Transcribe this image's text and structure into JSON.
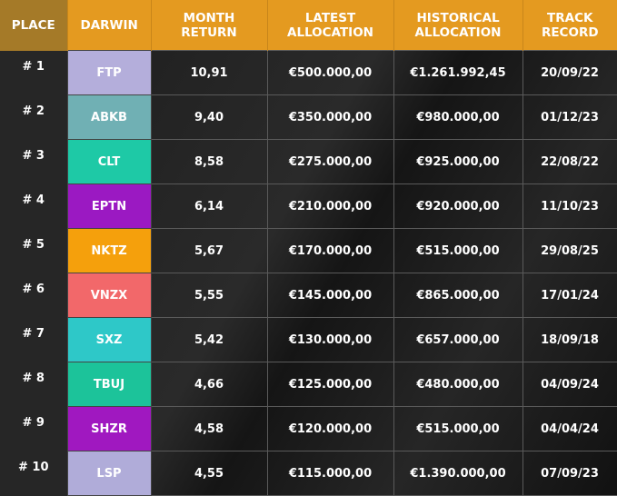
{
  "header": [
    "PLACE",
    "DARWIN",
    "MONTH RETURN",
    "LATEST ALLOCATION",
    "HISTORICAL ALLOCATION",
    "TRACK RECORD"
  ],
  "rows": [
    {
      "place": "# 1",
      "darwin": "FTP",
      "color": "#b4aedb",
      "month_return": "10,91",
      "latest_allocation": "€500.000,00",
      "historical_allocation": "€1.261.992,45",
      "track_record": "20/09/22"
    },
    {
      "place": "# 2",
      "darwin": "ABKB",
      "color": "#70b0b4",
      "month_return": "9,40",
      "latest_allocation": "€350.000,00",
      "historical_allocation": "€980.000,00",
      "track_record": "01/12/23"
    },
    {
      "place": "# 3",
      "darwin": "CLT",
      "color": "#1ec9a6",
      "month_return": "8,58",
      "latest_allocation": "€275.000,00",
      "historical_allocation": "€925.000,00",
      "track_record": "22/08/22"
    },
    {
      "place": "# 4",
      "darwin": "EPTN",
      "color": "#9b19c2",
      "month_return": "6,14",
      "latest_allocation": "€210.000,00",
      "historical_allocation": "€920.000,00",
      "track_record": "11/10/23"
    },
    {
      "place": "# 5",
      "darwin": "NKTZ",
      "color": "#f5a00c",
      "month_return": "5,67",
      "latest_allocation": "€170.000,00",
      "historical_allocation": "€515.000,00",
      "track_record": "29/08/25"
    },
    {
      "place": "# 6",
      "darwin": "VNZX",
      "color": "#f2686a",
      "month_return": "5,55",
      "latest_allocation": "€145.000,00",
      "historical_allocation": "€865.000,00",
      "track_record": "17/01/24"
    },
    {
      "place": "# 7",
      "darwin": "SXZ",
      "color": "#2ec8c8",
      "month_return": "5,42",
      "latest_allocation": "€130.000,00",
      "historical_allocation": "€657.000,00",
      "track_record": "18/09/18"
    },
    {
      "place": "# 8",
      "darwin": "TBUJ",
      "color": "#1cc39a",
      "month_return": "4,66",
      "latest_allocation": "€125.000,00",
      "historical_allocation": "€480.000,00",
      "track_record": "04/09/24"
    },
    {
      "place": "# 9",
      "darwin": "SHZR",
      "color": "#a018c0",
      "month_return": "4,58",
      "latest_allocation": "€120.000,00",
      "historical_allocation": "€515.000,00",
      "track_record": "04/04/24"
    },
    {
      "place": "# 10",
      "darwin": "LSP",
      "color": "#b0acd9",
      "month_return": "4,55",
      "latest_allocation": "€115.000,00",
      "historical_allocation": "€1.390.000,00",
      "track_record": "07/09/23"
    }
  ]
}
